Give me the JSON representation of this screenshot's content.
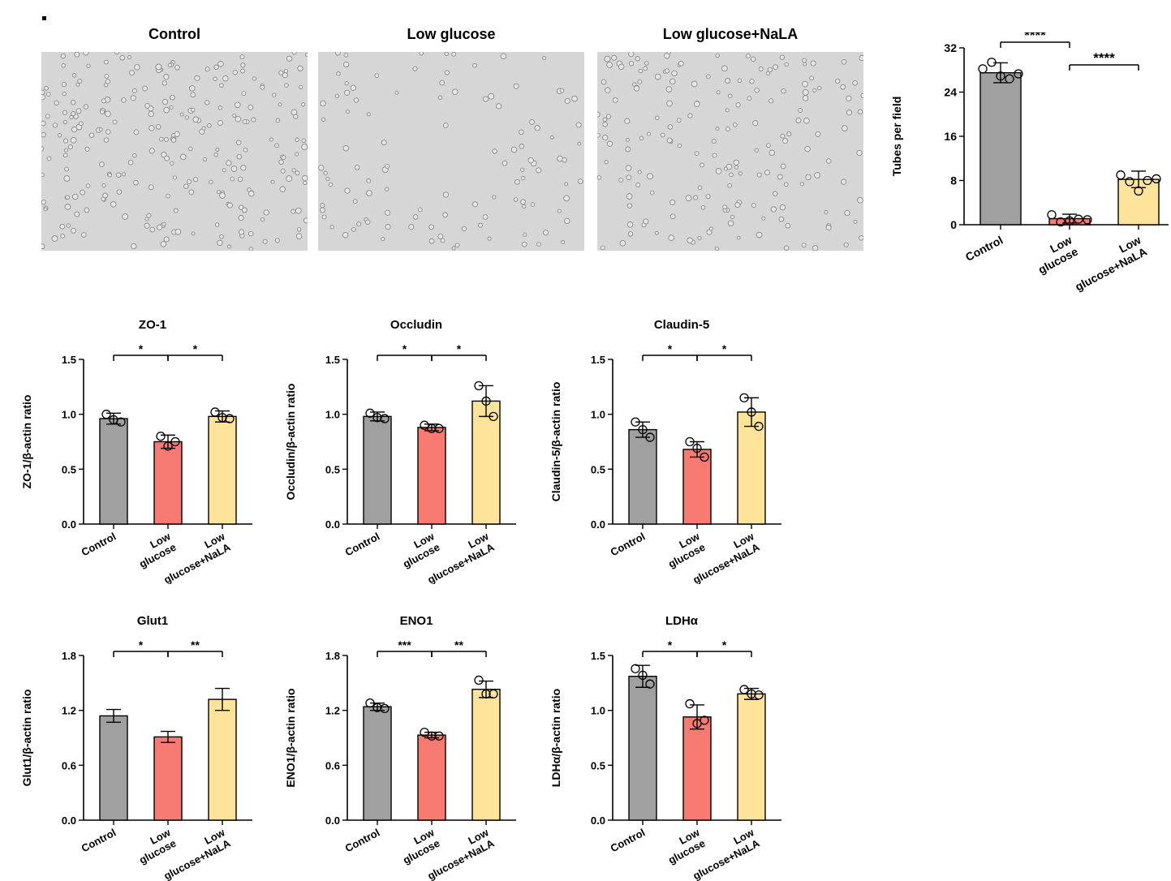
{
  "figure": {
    "micrographs": [
      {
        "title": "Control",
        "density": "high"
      },
      {
        "title": "Low glucose",
        "density": "low"
      },
      {
        "title": "Low glucose+NaLA",
        "density": "medium"
      }
    ]
  },
  "colors": {
    "control": "#a0a0a0",
    "low_glucose": "#f87b73",
    "nala": "#fde49a",
    "stroke": "#000000",
    "micro_bg": "#d6d6d6",
    "cell": "#8a8a8a"
  },
  "chart_data": [
    {
      "type": "bar",
      "title": "",
      "ylabel": "Tubes per field",
      "categories": [
        "Control",
        "Low\nglucose",
        "Low\nglucose+NaLA"
      ],
      "values": [
        27.5,
        1.1,
        8.2
      ],
      "errors": [
        1.8,
        0.8,
        1.5
      ],
      "points": [
        [
          28.2,
          29.4,
          26.9,
          26.4,
          27.3
        ],
        [
          1.8,
          0.5,
          0.7,
          1.0,
          0.9
        ],
        [
          9.0,
          7.8,
          6.1,
          8.0,
          8.3
        ]
      ],
      "ylim": [
        0,
        32
      ],
      "yticks": [
        0,
        8,
        16,
        24,
        32
      ],
      "brackets": [
        {
          "from": 0,
          "to": 1,
          "label": "****",
          "level": 0
        },
        {
          "from": 1,
          "to": 2,
          "label": "****",
          "level": 1
        }
      ]
    },
    {
      "type": "bar",
      "title": "ZO-1",
      "ylabel": "ZO-1/β-actin ratio",
      "categories": [
        "Control",
        "Low\nglucose",
        "Low\nglucose+NaLA"
      ],
      "values": [
        0.96,
        0.75,
        0.98
      ],
      "errors": [
        0.05,
        0.06,
        0.05
      ],
      "points": [
        [
          1.0,
          0.95,
          0.93
        ],
        [
          0.8,
          0.71,
          0.75
        ],
        [
          1.02,
          0.97,
          0.96
        ]
      ],
      "ylim": [
        0,
        1.5
      ],
      "yticks": [
        "0.0",
        "0.5",
        "1.0",
        "1.5"
      ],
      "brackets": [
        {
          "from": 0,
          "to": 1,
          "label": "*",
          "level": 0
        },
        {
          "from": 1,
          "to": 2,
          "label": "*",
          "level": 0
        }
      ]
    },
    {
      "type": "bar",
      "title": "Occludin",
      "ylabel": "Occludin/β-actin ratio",
      "categories": [
        "Control",
        "Low\nglucose",
        "Low\nglucose+NaLA"
      ],
      "values": [
        0.98,
        0.88,
        1.12
      ],
      "errors": [
        0.04,
        0.03,
        0.14
      ],
      "points": [
        [
          1.01,
          0.97,
          0.96
        ],
        [
          0.9,
          0.87,
          0.87
        ],
        [
          1.26,
          1.12,
          0.98
        ]
      ],
      "ylim": [
        0,
        1.5
      ],
      "yticks": [
        "0.0",
        "0.5",
        "1.0",
        "1.5"
      ],
      "brackets": [
        {
          "from": 0,
          "to": 1,
          "label": "*",
          "level": 0
        },
        {
          "from": 1,
          "to": 2,
          "label": "*",
          "level": 0
        }
      ]
    },
    {
      "type": "bar",
      "title": "Claudin-5",
      "ylabel": "Claudin-5/β-actin ratio",
      "categories": [
        "Control",
        "Low\nglucose",
        "Low\nglucose+NaLA"
      ],
      "values": [
        0.86,
        0.68,
        1.02
      ],
      "errors": [
        0.07,
        0.07,
        0.13
      ],
      "points": [
        [
          0.93,
          0.86,
          0.79
        ],
        [
          0.75,
          0.69,
          0.61
        ],
        [
          1.15,
          1.02,
          0.89
        ]
      ],
      "ylim": [
        0,
        1.5
      ],
      "yticks": [
        "0.0",
        "0.5",
        "1.0",
        "1.5"
      ],
      "brackets": [
        {
          "from": 0,
          "to": 1,
          "label": "*",
          "level": 0
        },
        {
          "from": 1,
          "to": 2,
          "label": "*",
          "level": 0
        }
      ]
    },
    {
      "type": "bar",
      "title": "Glut1",
      "ylabel": "Glut1/β-actin ratio",
      "categories": [
        "Control",
        "Low\nglucose",
        "Low\nglucose+NaLA"
      ],
      "values": [
        1.14,
        0.91,
        1.32
      ],
      "errors": [
        0.07,
        0.06,
        0.12
      ],
      "points": [
        [],
        [],
        []
      ],
      "ylim": [
        0,
        1.8
      ],
      "yticks": [
        "0.0",
        "0.6",
        "1.2",
        "1.8"
      ],
      "brackets": [
        {
          "from": 0,
          "to": 1,
          "label": "*",
          "level": 0
        },
        {
          "from": 1,
          "to": 2,
          "label": "**",
          "level": 0
        }
      ]
    },
    {
      "type": "bar",
      "title": "ENO1",
      "ylabel": "ENO1/β-actin ratio",
      "categories": [
        "Control",
        "Low\nglucose",
        "Low\nglucose+NaLA"
      ],
      "values": [
        1.24,
        0.93,
        1.43
      ],
      "errors": [
        0.04,
        0.03,
        0.09
      ],
      "points": [
        [
          1.28,
          1.23,
          1.22
        ],
        [
          0.96,
          0.92,
          0.92
        ],
        [
          1.53,
          1.38,
          1.38
        ]
      ],
      "ylim": [
        0,
        1.8
      ],
      "yticks": [
        "0.0",
        "0.6",
        "1.2",
        "1.8"
      ],
      "brackets": [
        {
          "from": 0,
          "to": 1,
          "label": "***",
          "level": 0
        },
        {
          "from": 1,
          "to": 2,
          "label": "**",
          "level": 0
        }
      ]
    },
    {
      "type": "bar",
      "title": "LDHα",
      "ylabel": "LDHα/β-actin ratio",
      "categories": [
        "Control",
        "Low\nglucose",
        "Low\nglucose+NaLA"
      ],
      "values": [
        1.31,
        0.94,
        1.15
      ],
      "errors": [
        0.1,
        0.11,
        0.05
      ],
      "points": [
        [
          1.38,
          1.32,
          1.24
        ],
        [
          1.06,
          0.88,
          0.91
        ],
        [
          1.19,
          1.15,
          1.14
        ]
      ],
      "ylim": [
        0,
        1.5
      ],
      "yticks": [
        "0.0",
        "0.5",
        "1.0",
        "1.5"
      ],
      "brackets": [
        {
          "from": 0,
          "to": 1,
          "label": "*",
          "level": 0
        },
        {
          "from": 1,
          "to": 2,
          "label": "*",
          "level": 0
        }
      ]
    }
  ]
}
